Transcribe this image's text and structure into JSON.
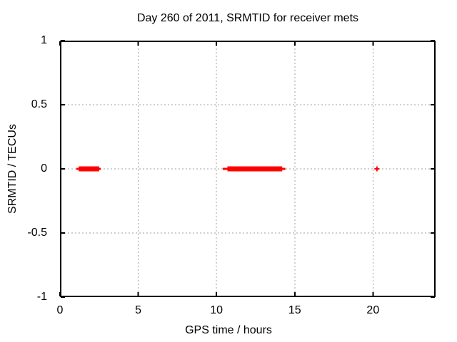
{
  "window": {
    "background": "#ffffff"
  },
  "chart_data": {
    "type": "scatter",
    "title": "Day 260 of 2011, SRMTID for receiver mets",
    "xlabel": "GPS time / hours",
    "ylabel": "SRMTID / TECUs",
    "xlim": [
      0,
      24
    ],
    "ylim": [
      -1,
      1
    ],
    "xticks": [
      0,
      5,
      10,
      15,
      20
    ],
    "xtick_labels": [
      "0",
      "5",
      "10",
      "15",
      "20"
    ],
    "yticks": [
      1,
      0.5,
      0,
      -0.5,
      -1
    ],
    "ytick_labels": [
      "1",
      "0.5",
      "0",
      "-0.5",
      "-1"
    ],
    "grid": true,
    "legend": "none",
    "marker": "plus",
    "colors": {
      "marker": "#ff0000",
      "grid": "#a0a0a0",
      "border": "#000000",
      "text": "#000000"
    },
    "series": [
      {
        "name": "SRMTID",
        "y_value": 0,
        "dense_segments_hours": [
          [
            1.2,
            2.5
          ],
          [
            10.7,
            14.2
          ]
        ],
        "sparse_extents_hours": [
          [
            1.05,
            2.6
          ],
          [
            10.4,
            14.4
          ]
        ],
        "isolated_points": [
          {
            "x": 20.25,
            "y": 0
          }
        ]
      }
    ]
  }
}
